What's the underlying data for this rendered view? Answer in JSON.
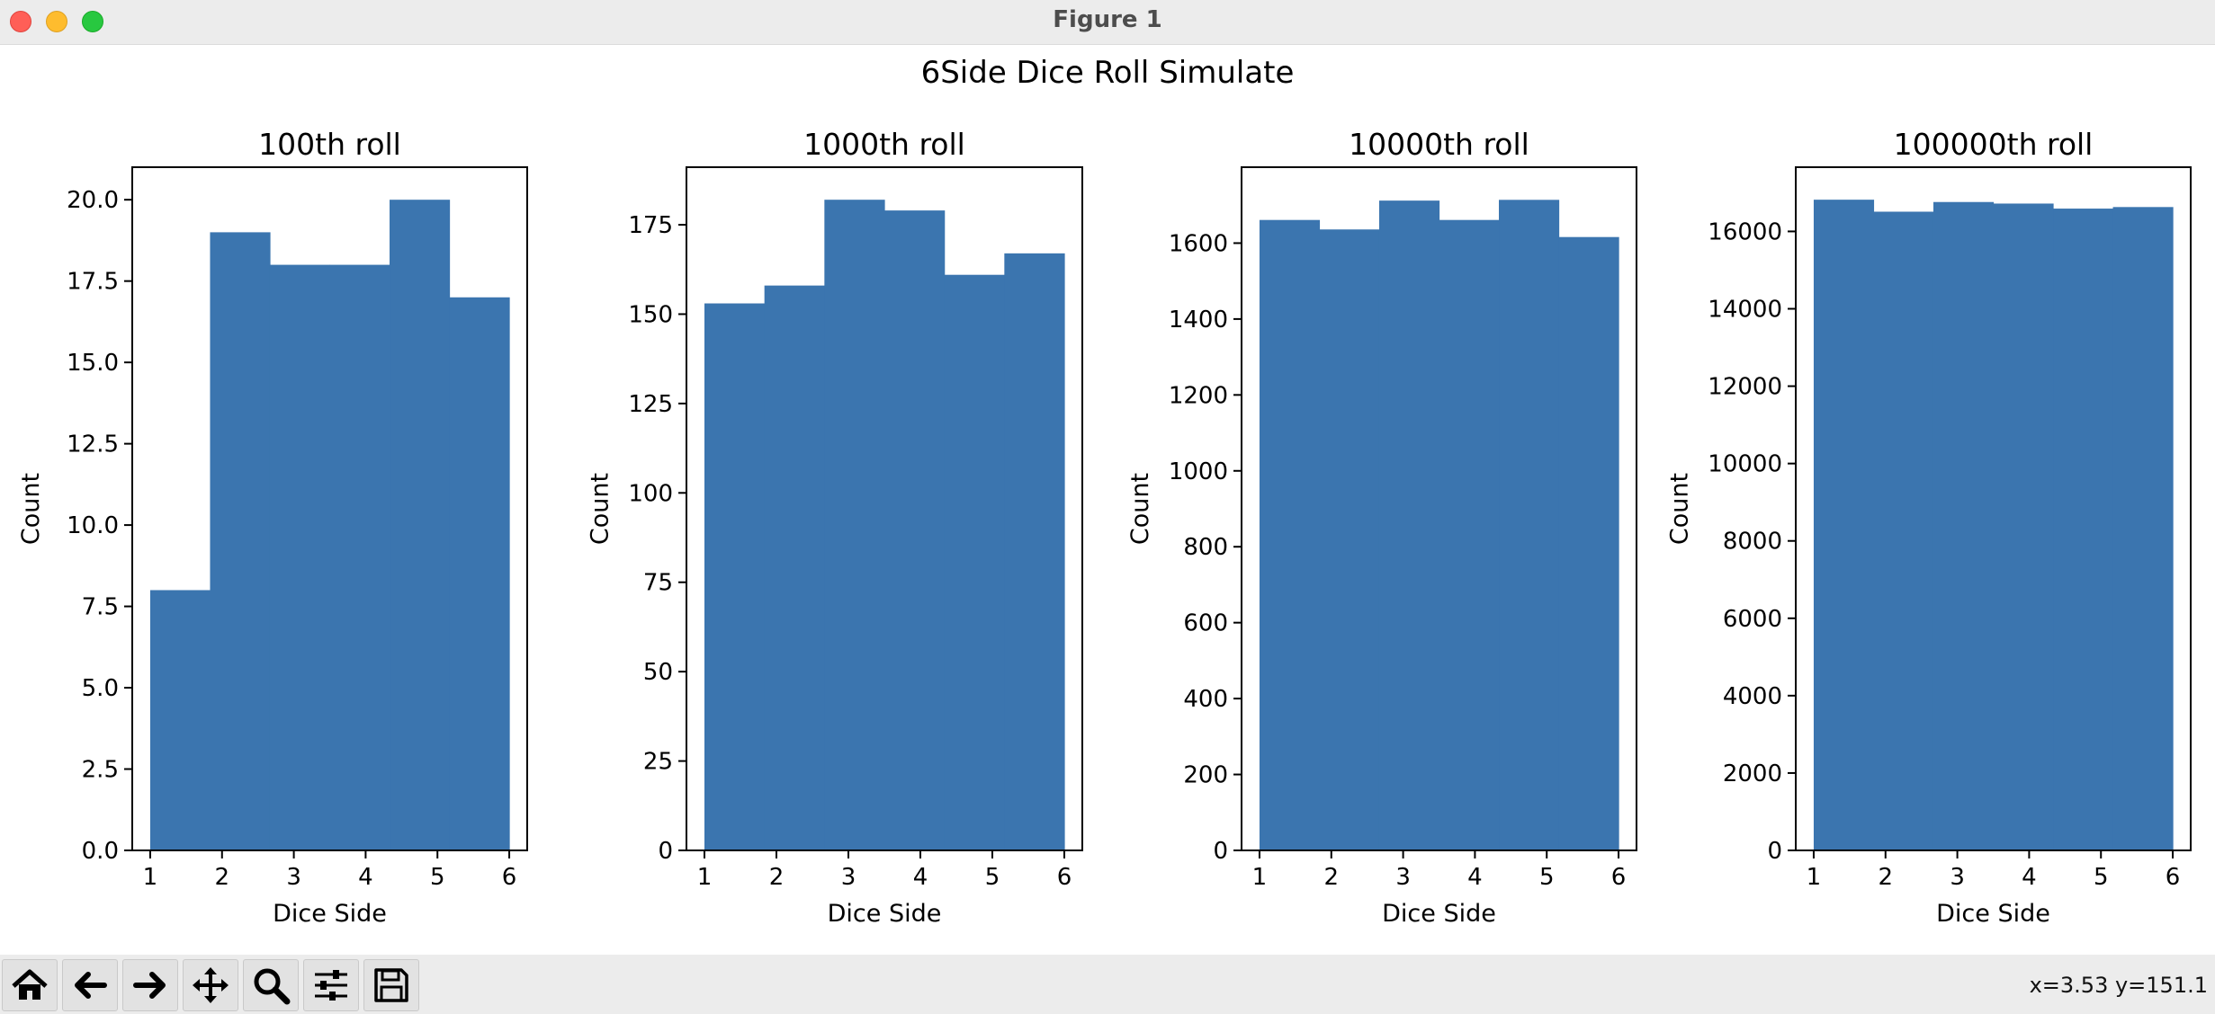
{
  "window": {
    "title": "Figure 1"
  },
  "toolbar": {
    "buttons": [
      {
        "name": "home-button",
        "icon": "home-icon"
      },
      {
        "name": "back-button",
        "icon": "arrow-left-icon"
      },
      {
        "name": "forward-button",
        "icon": "arrow-right-icon"
      },
      {
        "name": "pan-button",
        "icon": "move-icon"
      },
      {
        "name": "zoom-button",
        "icon": "magnifier-icon"
      },
      {
        "name": "configure-subplots-button",
        "icon": "sliders-icon"
      },
      {
        "name": "save-button",
        "icon": "floppy-disk-icon"
      }
    ],
    "coords": "x=3.53 y=151.1"
  },
  "chart_data": {
    "suptitle": "6Side Dice Roll Simulate",
    "bar_color": "#3b75af",
    "charts": [
      {
        "type": "bar",
        "title": "100th roll",
        "xlabel": "Dice Side",
        "ylabel": "Count",
        "bin_edges": [
          1,
          1.8333,
          2.6667,
          3.5,
          4.3333,
          5.1667,
          6
        ],
        "values": [
          8,
          19,
          18,
          18,
          20,
          17
        ],
        "xlim": [
          0.75,
          6.25
        ],
        "ylim": [
          0,
          21
        ],
        "xticks": [
          1,
          2,
          3,
          4,
          5,
          6
        ],
        "yticks": [
          0,
          2.5,
          5,
          7.5,
          10,
          12.5,
          15,
          17.5,
          20
        ],
        "ytick_labels": [
          "0.0",
          "2.5",
          "5.0",
          "7.5",
          "10.0",
          "12.5",
          "15.0",
          "17.5",
          "20.0"
        ]
      },
      {
        "type": "bar",
        "title": "1000th roll",
        "xlabel": "Dice Side",
        "ylabel": "Count",
        "bin_edges": [
          1,
          1.8333,
          2.6667,
          3.5,
          4.3333,
          5.1667,
          6
        ],
        "values": [
          153,
          158,
          182,
          179,
          161,
          167
        ],
        "xlim": [
          0.75,
          6.25
        ],
        "ylim": [
          0,
          191.1
        ],
        "xticks": [
          1,
          2,
          3,
          4,
          5,
          6
        ],
        "yticks": [
          0,
          25,
          50,
          75,
          100,
          125,
          150,
          175
        ],
        "ytick_labels": [
          "0",
          "25",
          "50",
          "75",
          "100",
          "125",
          "150",
          "175"
        ]
      },
      {
        "type": "bar",
        "title": "10000th roll",
        "xlabel": "Dice Side",
        "ylabel": "Count",
        "bin_edges": [
          1,
          1.8333,
          2.6667,
          3.5,
          4.3333,
          5.1667,
          6
        ],
        "values": [
          1661,
          1636,
          1712,
          1661,
          1714,
          1616
        ],
        "xlim": [
          0.75,
          6.25
        ],
        "ylim": [
          0,
          1800
        ],
        "xticks": [
          1,
          2,
          3,
          4,
          5,
          6
        ],
        "yticks": [
          0,
          200,
          400,
          600,
          800,
          1000,
          1200,
          1400,
          1600
        ],
        "ytick_labels": [
          "0",
          "200",
          "400",
          "600",
          "800",
          "1000",
          "1200",
          "1400",
          "1600"
        ]
      },
      {
        "type": "bar",
        "title": "100000th roll",
        "xlabel": "Dice Side",
        "ylabel": "Count",
        "bin_edges": [
          1,
          1.8333,
          2.6667,
          3.5,
          4.3333,
          5.1667,
          6
        ],
        "values": [
          16820,
          16510,
          16760,
          16720,
          16590,
          16630
        ],
        "xlim": [
          0.75,
          6.25
        ],
        "ylim": [
          0,
          17660
        ],
        "xticks": [
          1,
          2,
          3,
          4,
          5,
          6
        ],
        "yticks": [
          0,
          2000,
          4000,
          6000,
          8000,
          10000,
          12000,
          14000,
          16000
        ],
        "ytick_labels": [
          "0",
          "2000",
          "4000",
          "6000",
          "8000",
          "10000",
          "12000",
          "14000",
          "16000"
        ]
      }
    ]
  }
}
